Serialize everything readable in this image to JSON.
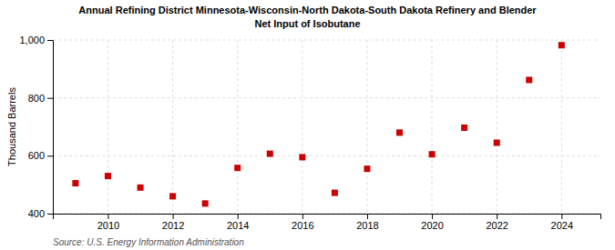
{
  "chart_data": {
    "type": "scatter",
    "title": "Annual Refining District Minnesota-Wisconsin-North Dakota-South Dakota Refinery and Blender",
    "subtitle": "Net Input of Isobutane",
    "y_label": "Thousand Barrels",
    "annotations": [
      "Source: U.S. Energy Information Administration"
    ],
    "x": [
      2009,
      2010,
      2011,
      2012,
      2013,
      2014,
      2015,
      2016,
      2017,
      2018,
      2019,
      2020,
      2021,
      2022,
      2023,
      2024
    ],
    "values": [
      505,
      530,
      490,
      460,
      435,
      558,
      607,
      595,
      472,
      555,
      680,
      605,
      697,
      645,
      862,
      982
    ],
    "color": "#cc0000",
    "marker": "square",
    "xlim": [
      2008.3,
      2025.2
    ],
    "xticks": [
      2010,
      2012,
      2014,
      2016,
      2018,
      2020,
      2022,
      2024
    ],
    "ylim": [
      400,
      1000
    ],
    "yticks": [
      400,
      600,
      800,
      {
        "value": 1000,
        "label": "1,000"
      }
    ],
    "grid": true
  }
}
